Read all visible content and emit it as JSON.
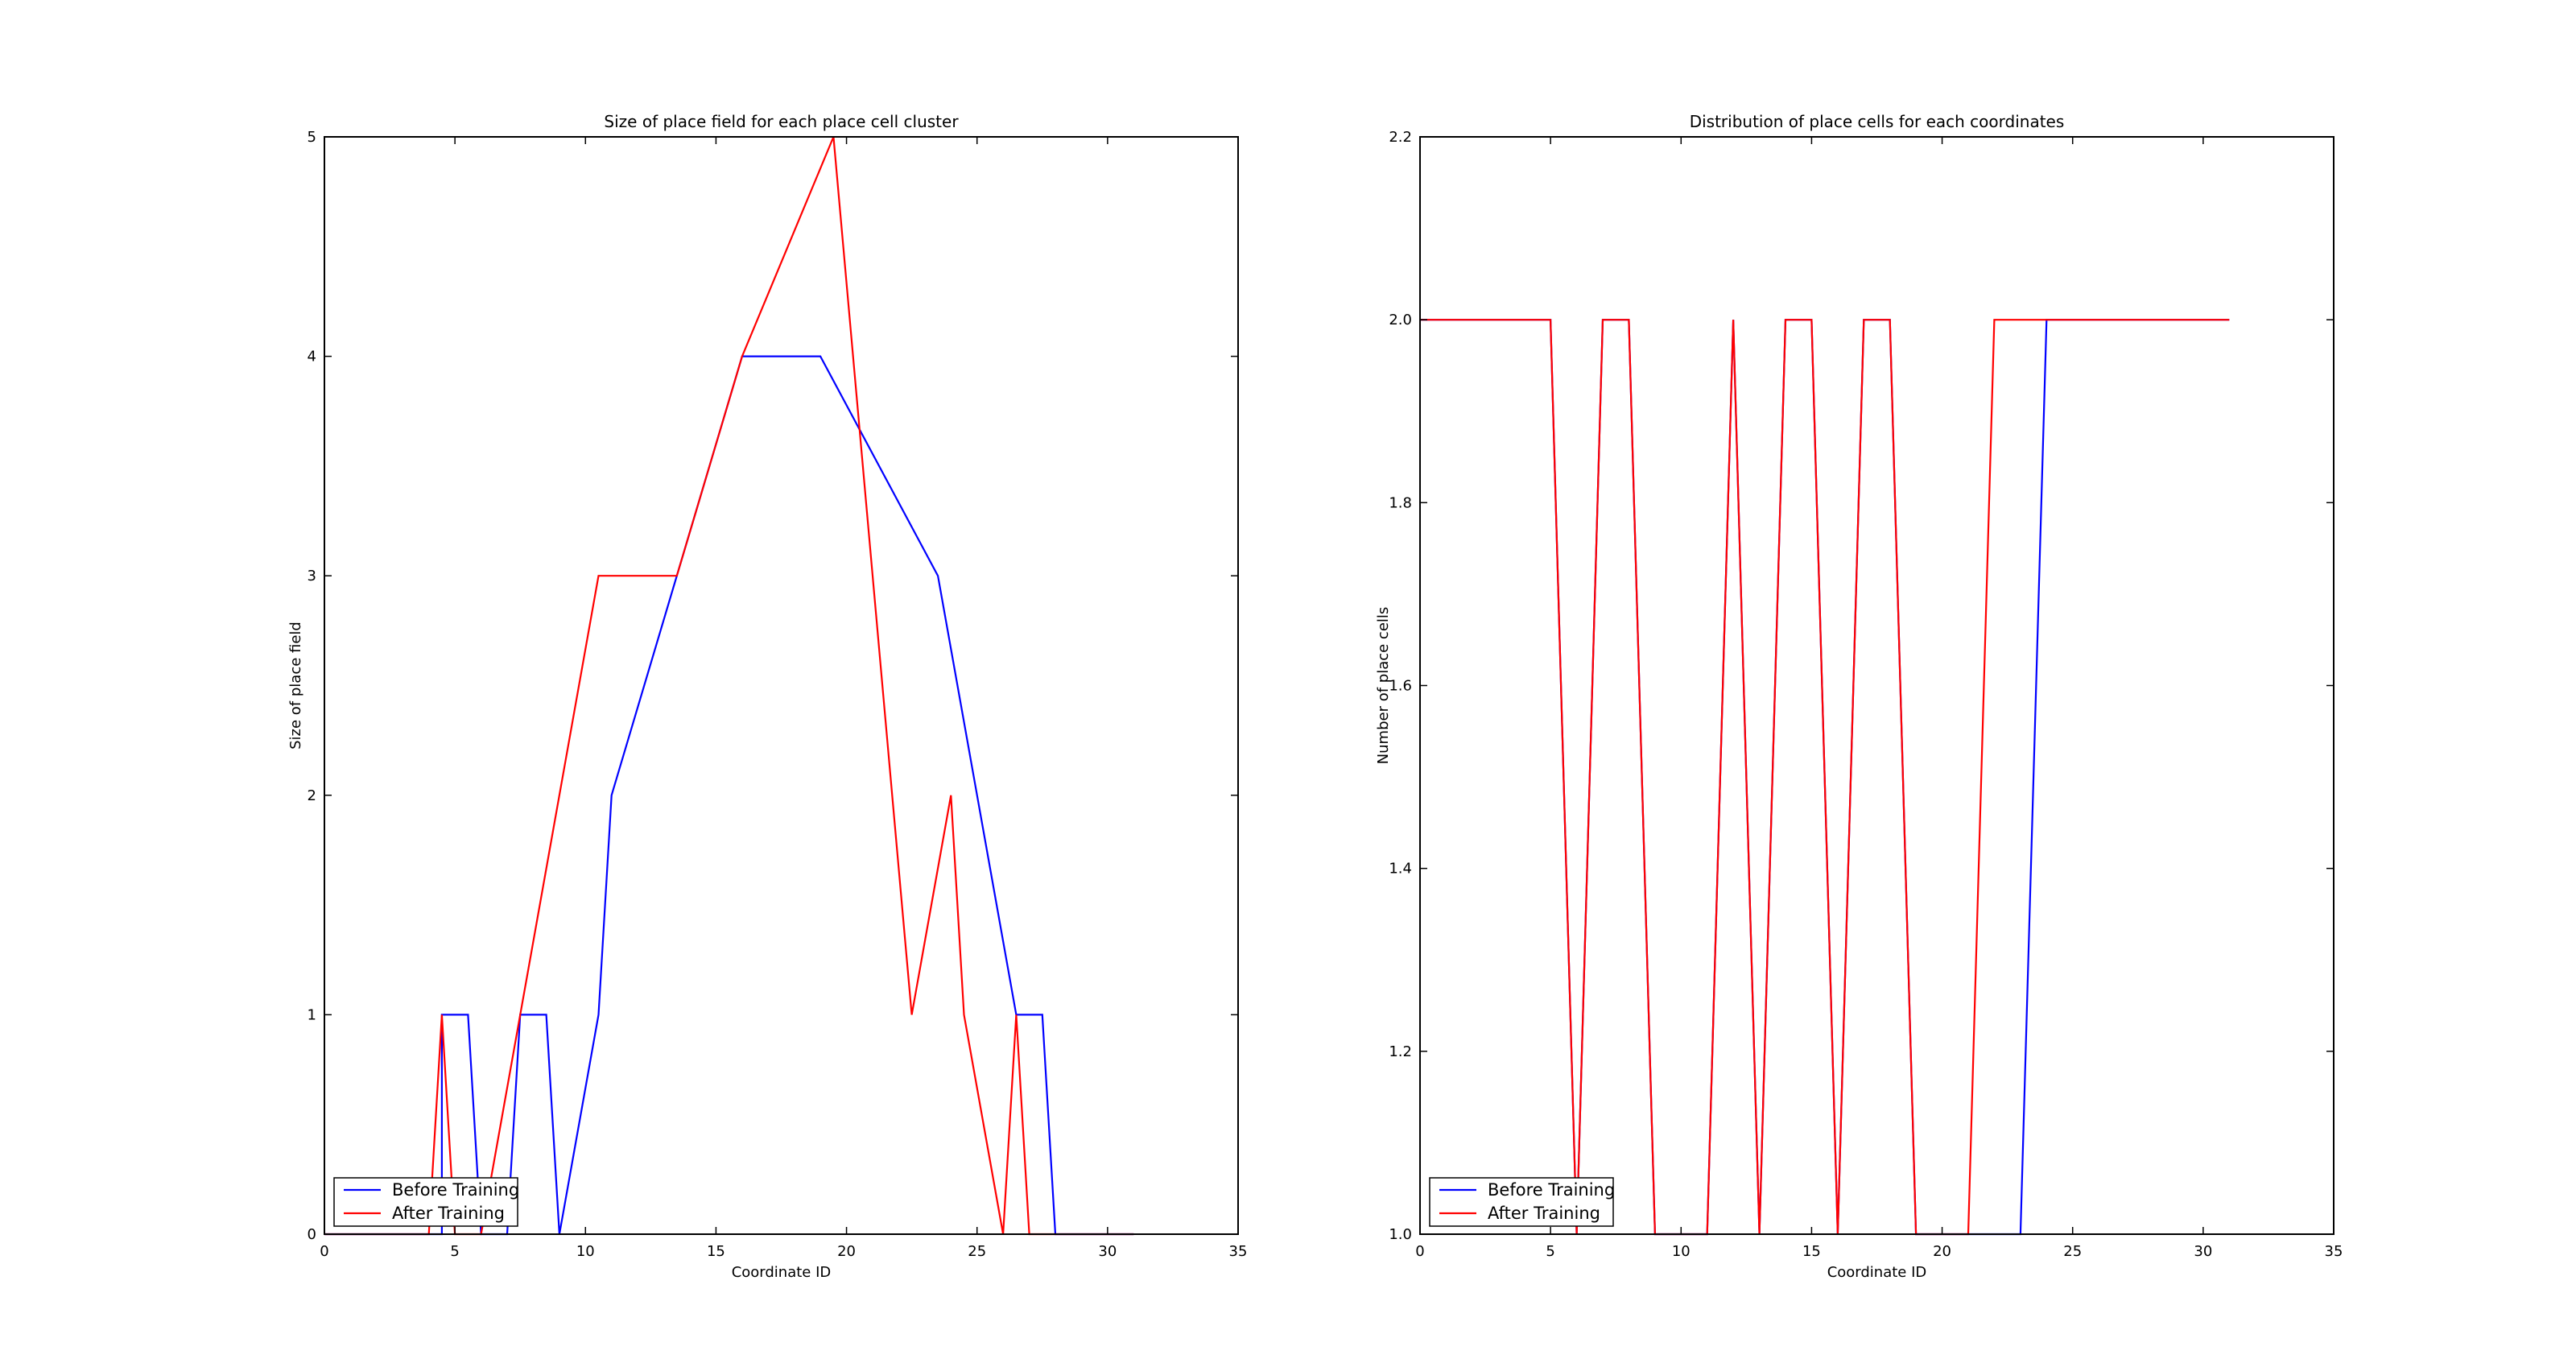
{
  "chart_data": [
    {
      "type": "line",
      "title": "Size of place field for each place cell cluster",
      "xlabel": "Coordinate ID",
      "ylabel": "Size of place field",
      "xlim": [
        0,
        35
      ],
      "ylim": [
        0,
        5
      ],
      "xticks": [
        "0",
        "5",
        "10",
        "15",
        "20",
        "25",
        "30",
        "35"
      ],
      "yticks": [
        "0",
        "1",
        "2",
        "3",
        "4",
        "5"
      ],
      "legend_position": "lower-left",
      "grid": false,
      "series": [
        {
          "name": "Before Training",
          "color": "#0000ff",
          "points": [
            [
              0,
              0
            ],
            [
              4.5,
              0
            ],
            [
              4.5,
              1
            ],
            [
              5.5,
              1
            ],
            [
              6,
              0
            ],
            [
              7,
              0
            ],
            [
              7.5,
              1
            ],
            [
              8.5,
              1
            ],
            [
              9,
              0
            ],
            [
              10.5,
              1
            ],
            [
              11,
              2
            ],
            [
              13.5,
              3
            ],
            [
              16,
              4
            ],
            [
              19,
              4
            ],
            [
              23.5,
              3
            ],
            [
              26.5,
              1
            ],
            [
              27.5,
              1
            ],
            [
              28,
              0
            ],
            [
              31,
              0
            ]
          ]
        },
        {
          "name": "After Training",
          "color": "#ff0000",
          "points": [
            [
              0,
              0
            ],
            [
              4,
              0
            ],
            [
              4.5,
              1
            ],
            [
              5,
              0
            ],
            [
              6,
              0
            ],
            [
              10.5,
              3
            ],
            [
              13.5,
              3
            ],
            [
              16,
              4
            ],
            [
              19.5,
              5
            ],
            [
              22.5,
              1
            ],
            [
              24,
              2
            ],
            [
              24.5,
              1
            ],
            [
              26,
              0
            ],
            [
              26.5,
              1
            ],
            [
              27,
              0
            ],
            [
              31,
              0
            ]
          ]
        }
      ]
    },
    {
      "type": "line",
      "title": "Distribution of place cells for each coordinates",
      "xlabel": "Coordinate ID",
      "ylabel": "Number of place cells",
      "xlim": [
        0,
        35
      ],
      "ylim": [
        1.0,
        2.2
      ],
      "xticks": [
        "0",
        "5",
        "10",
        "15",
        "20",
        "25",
        "30",
        "35"
      ],
      "yticks": [
        "1.0",
        "1.2",
        "1.4",
        "1.6",
        "1.8",
        "2.0",
        "2.2"
      ],
      "legend_position": "lower-left",
      "grid": false,
      "series": [
        {
          "name": "Before Training",
          "color": "#0000ff",
          "points": [
            [
              0,
              2
            ],
            [
              5,
              2
            ],
            [
              6,
              1
            ],
            [
              7,
              2
            ],
            [
              8,
              2
            ],
            [
              9,
              1
            ],
            [
              11,
              1
            ],
            [
              12,
              2
            ],
            [
              13,
              1
            ],
            [
              14,
              2
            ],
            [
              15,
              2
            ],
            [
              16,
              1
            ],
            [
              17,
              2
            ],
            [
              18,
              2
            ],
            [
              19,
              1
            ],
            [
              23,
              1
            ],
            [
              24,
              2
            ],
            [
              31,
              2
            ]
          ]
        },
        {
          "name": "After Training",
          "color": "#ff0000",
          "points": [
            [
              0,
              2
            ],
            [
              5,
              2
            ],
            [
              6,
              1
            ],
            [
              7,
              2
            ],
            [
              8,
              2
            ],
            [
              9,
              1
            ],
            [
              11,
              1
            ],
            [
              12,
              2
            ],
            [
              13,
              1
            ],
            [
              14,
              2
            ],
            [
              15,
              2
            ],
            [
              16,
              1
            ],
            [
              17,
              2
            ],
            [
              18,
              2
            ],
            [
              19,
              1
            ],
            [
              21,
              1
            ],
            [
              22,
              2
            ],
            [
              31,
              2
            ]
          ]
        }
      ]
    }
  ]
}
